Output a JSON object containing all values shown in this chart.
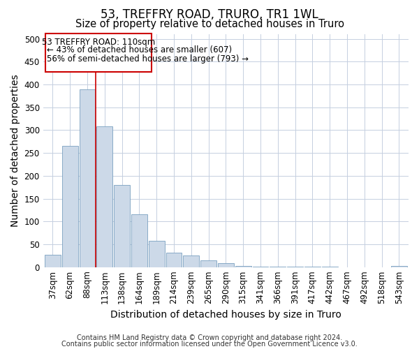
{
  "title": "53, TREFFRY ROAD, TRURO, TR1 1WL",
  "subtitle": "Size of property relative to detached houses in Truro",
  "xlabel": "Distribution of detached houses by size in Truro",
  "ylabel": "Number of detached properties",
  "categories": [
    "37sqm",
    "62sqm",
    "88sqm",
    "113sqm",
    "138sqm",
    "164sqm",
    "189sqm",
    "214sqm",
    "239sqm",
    "265sqm",
    "290sqm",
    "315sqm",
    "341sqm",
    "366sqm",
    "391sqm",
    "417sqm",
    "442sqm",
    "467sqm",
    "492sqm",
    "518sqm",
    "543sqm"
  ],
  "values": [
    27,
    265,
    390,
    308,
    180,
    115,
    58,
    32,
    25,
    15,
    8,
    2,
    1,
    1,
    1,
    1,
    1,
    0,
    0,
    0,
    2
  ],
  "bar_color": "#ccd9e8",
  "bar_edge_color": "#7aa0c0",
  "highlight_label": "53 TREFFRY ROAD: 110sqm",
  "annotation_line1": "← 43% of detached houses are smaller (607)",
  "annotation_line2": "56% of semi-detached houses are larger (793) →",
  "vline_color": "#cc0000",
  "box_color": "#cc0000",
  "ylim": [
    0,
    510
  ],
  "yticks": [
    0,
    50,
    100,
    150,
    200,
    250,
    300,
    350,
    400,
    450,
    500
  ],
  "footer1": "Contains HM Land Registry data © Crown copyright and database right 2024.",
  "footer2": "Contains public sector information licensed under the Open Government Licence v3.0.",
  "background_color": "#ffffff",
  "grid_color": "#c5cfe0",
  "title_fontsize": 12,
  "subtitle_fontsize": 10.5,
  "axis_label_fontsize": 10,
  "tick_fontsize": 8.5,
  "footer_fontsize": 7.0
}
